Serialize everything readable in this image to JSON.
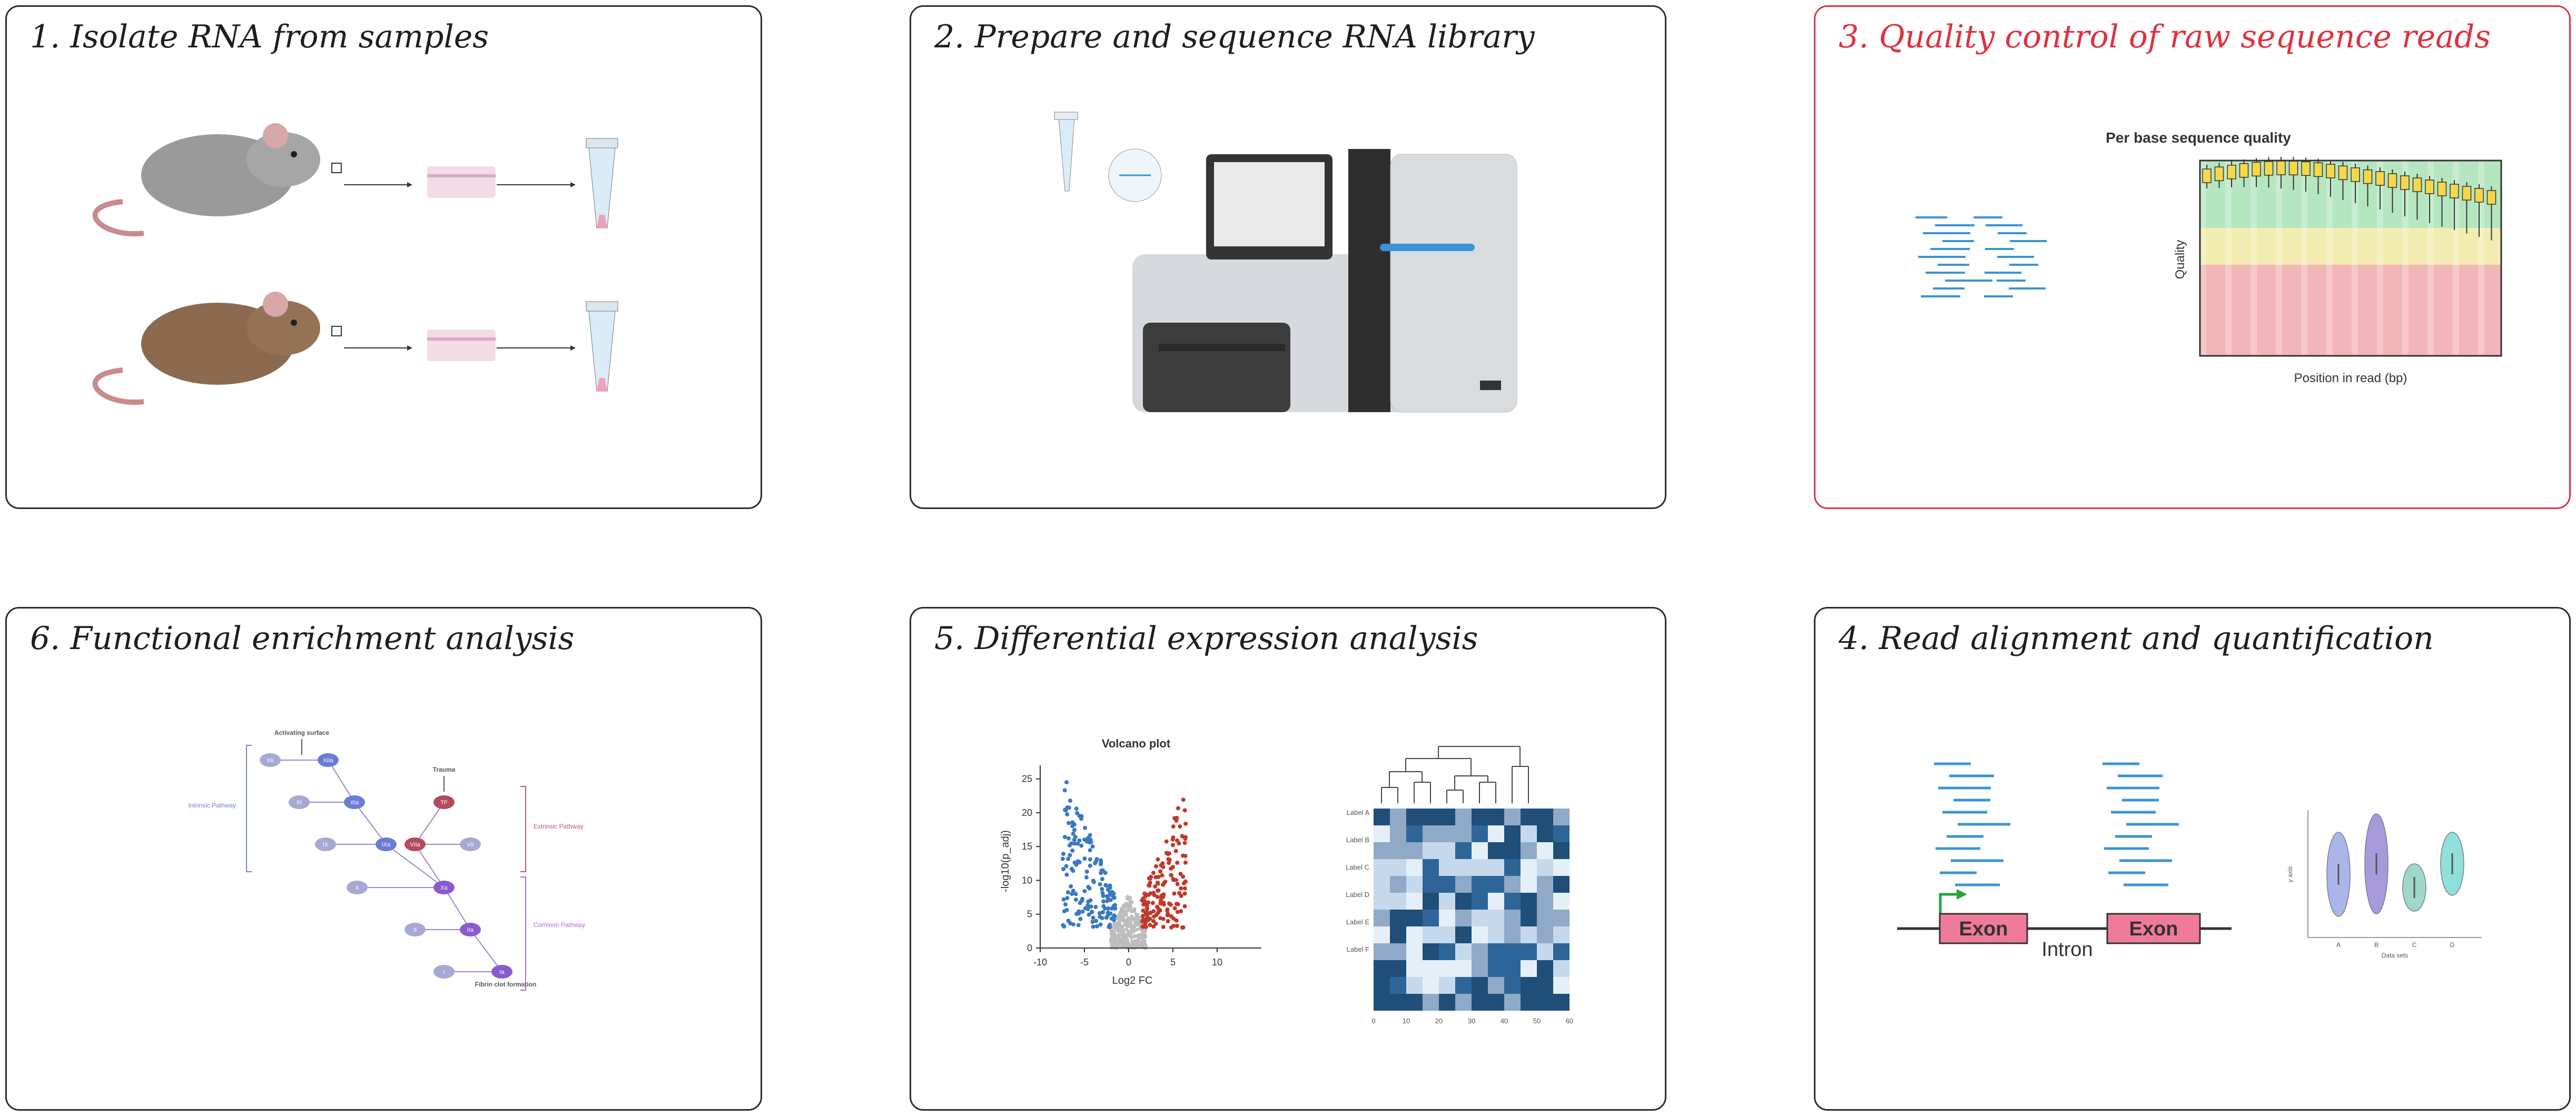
{
  "panels": {
    "p1": {
      "title": "1. Isolate RNA from samples"
    },
    "p2": {
      "title": "2. Prepare and sequence RNA library"
    },
    "p3": {
      "title": "3. Quality control of raw sequence reads",
      "chart_title": "Per base sequence quality",
      "xlabel": "Position in read (bp)",
      "ylabel": "Quality"
    },
    "p4": {
      "title": "4. Read alignment and quantification",
      "exon_label": "Exon",
      "intron_label": "Intron",
      "violin_xlabel": "Data sets",
      "violin_ylabel": "y axis",
      "violin_categories": [
        "A",
        "B",
        "C",
        "D"
      ]
    },
    "p5": {
      "title": "5. Differential expression analysis",
      "volcano_title": "Volcano plot",
      "volcano_xlabel": "Log2 FC",
      "volcano_ylabel": "-log10(p_adj)",
      "volcano_xticks": [
        "-10",
        "-5",
        "0",
        "5",
        "10"
      ],
      "volcano_yticks": [
        "0",
        "5",
        "10",
        "15",
        "20",
        "25"
      ],
      "heatmap_rows": [
        "Label A",
        "Label B",
        "Label C",
        "Label D",
        "Label E",
        "Label F"
      ],
      "heatmap_xticks": [
        "0",
        "10",
        "20",
        "30",
        "40",
        "50",
        "60"
      ]
    },
    "p6": {
      "title": "6. Functional enrichment analysis",
      "activating_surface": "Activating surface",
      "trauma": "Trauma",
      "intrinsic": "Intrinsic Pathway",
      "extrinsic": "Extrinsic Pathway",
      "common": "Common Pathway",
      "fibrin": "Fibrin clot formation",
      "nodes": [
        "XII",
        "XIIa",
        "XI",
        "XIa",
        "IX",
        "IXa",
        "VIIa",
        "TF",
        "VII",
        "X",
        "Xa",
        "II",
        "IIa",
        "I",
        "Ia"
      ]
    }
  },
  "colors": {
    "border": "#2b2b2b",
    "highlight": "#e0313f",
    "read": "#3a93d6",
    "exon": "#f07a99",
    "up": "#c0392b",
    "down": "#3a78c2"
  }
}
